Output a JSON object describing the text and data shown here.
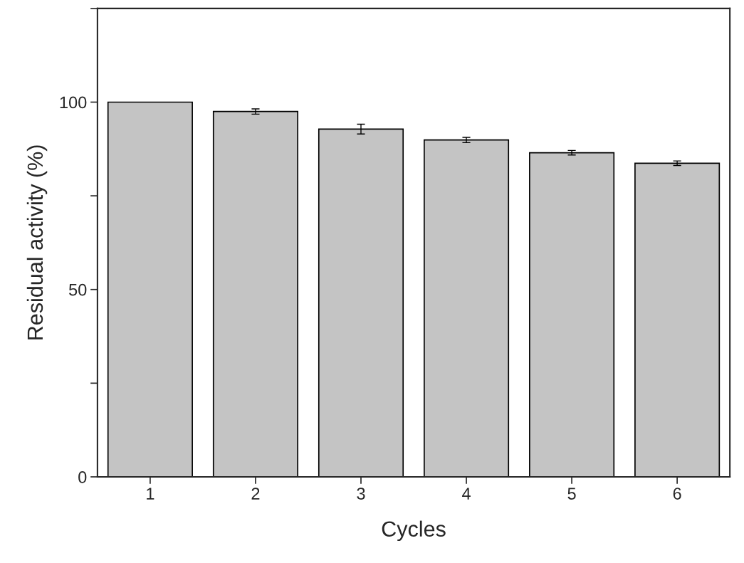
{
  "chart_data": {
    "type": "bar",
    "xlabel": "Cycles",
    "ylabel": "Residual activity (%)",
    "categories": [
      "1",
      "2",
      "3",
      "4",
      "5",
      "6"
    ],
    "values": [
      100,
      97.5,
      92.8,
      89.9,
      86.5,
      83.7
    ],
    "errors": [
      null,
      0.7,
      1.3,
      0.7,
      0.6,
      0.6
    ],
    "color": "#c4c4c4",
    "ylim": [
      0,
      125
    ],
    "yticks": [
      0,
      {
        "value": 25,
        "label": null
      },
      50,
      {
        "value": 75,
        "label": null
      },
      100,
      {
        "value": 125,
        "label": null
      }
    ],
    "grid": false
  }
}
